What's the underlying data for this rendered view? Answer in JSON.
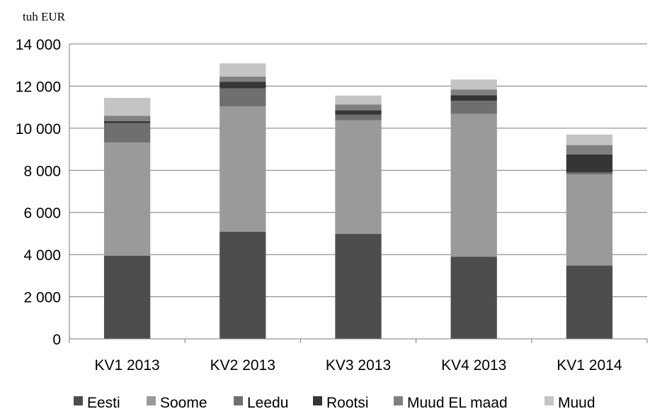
{
  "chart_data": {
    "type": "bar",
    "stacked": true,
    "unit_label": "tuh EUR",
    "categories": [
      "KV1 2013",
      "KV2 2013",
      "KV3 2013",
      "KV4 2013",
      "KV1 2014"
    ],
    "ylim": [
      0,
      14000
    ],
    "yticks": [
      0,
      2000,
      4000,
      6000,
      8000,
      10000,
      12000,
      14000
    ],
    "ytick_labels": [
      "0",
      "2 000",
      "4 000",
      "6 000",
      "8 000",
      "10 000",
      "12 000",
      "14 000"
    ],
    "grid": true,
    "legend_position": "bottom",
    "series": [
      {
        "name": "Eesti",
        "color": "#4d4d4d",
        "values": [
          3950,
          5080,
          4980,
          3900,
          3480
        ]
      },
      {
        "name": "Soome",
        "color": "#9a9a9a",
        "values": [
          5370,
          5950,
          5400,
          6780,
          4320
        ]
      },
      {
        "name": "Leedu",
        "color": "#6f6f6f",
        "values": [
          920,
          860,
          260,
          620,
          100
        ]
      },
      {
        "name": "Rootsi",
        "color": "#353535",
        "values": [
          100,
          310,
          210,
          260,
          860
        ]
      },
      {
        "name": "Muud EL maad",
        "color": "#808080",
        "values": [
          250,
          250,
          280,
          280,
          440
        ]
      },
      {
        "name": "Muud",
        "color": "#c4c4c4",
        "values": [
          850,
          630,
          420,
          470,
          500
        ]
      }
    ]
  }
}
